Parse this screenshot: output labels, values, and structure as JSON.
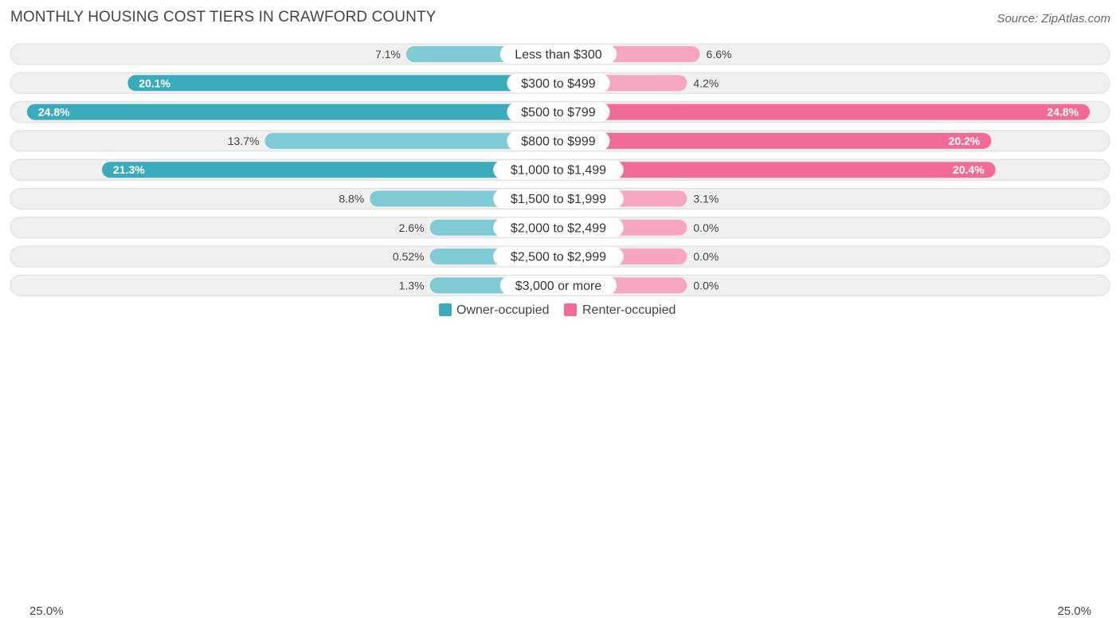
{
  "header": {
    "title": "MONTHLY HOUSING COST TIERS IN CRAWFORD COUNTY",
    "source": "Source: ZipAtlas.com"
  },
  "colors": {
    "owner": "#3aabba",
    "owner_light": "#7fcbd5",
    "renter": "#f06c97",
    "renter_light": "#f6a6c0",
    "row_bg": "#f0f0f0",
    "row_border": "#dcdcdc"
  },
  "legend": {
    "owner_label": "Owner-occupied",
    "renter_label": "Renter-occupied",
    "axis_left": "25.0%",
    "axis_right": "25.0%"
  },
  "chart_data": {
    "type": "bar",
    "orientation": "horizontal-diverging",
    "title": "MONTHLY HOUSING COST TIERS IN CRAWFORD COUNTY",
    "xlim": [
      -25,
      25
    ],
    "categories": [
      "Less than $300",
      "$300 to $499",
      "$500 to $799",
      "$800 to $999",
      "$1,000 to $1,499",
      "$1,500 to $1,999",
      "$2,000 to $2,499",
      "$2,500 to $2,999",
      "$3,000 or more"
    ],
    "series": [
      {
        "name": "Owner-occupied",
        "values": [
          7.1,
          20.1,
          24.8,
          13.7,
          21.3,
          8.8,
          2.6,
          0.52,
          1.3
        ],
        "labels": [
          "7.1%",
          "20.1%",
          "24.8%",
          "13.7%",
          "21.3%",
          "8.8%",
          "2.6%",
          "0.52%",
          "1.3%"
        ]
      },
      {
        "name": "Renter-occupied",
        "values": [
          6.6,
          4.2,
          24.8,
          20.2,
          20.4,
          3.1,
          0.0,
          0.0,
          0.0
        ],
        "labels": [
          "6.6%",
          "4.2%",
          "24.8%",
          "20.2%",
          "20.4%",
          "3.1%",
          "0.0%",
          "0.0%",
          "0.0%"
        ]
      }
    ]
  }
}
